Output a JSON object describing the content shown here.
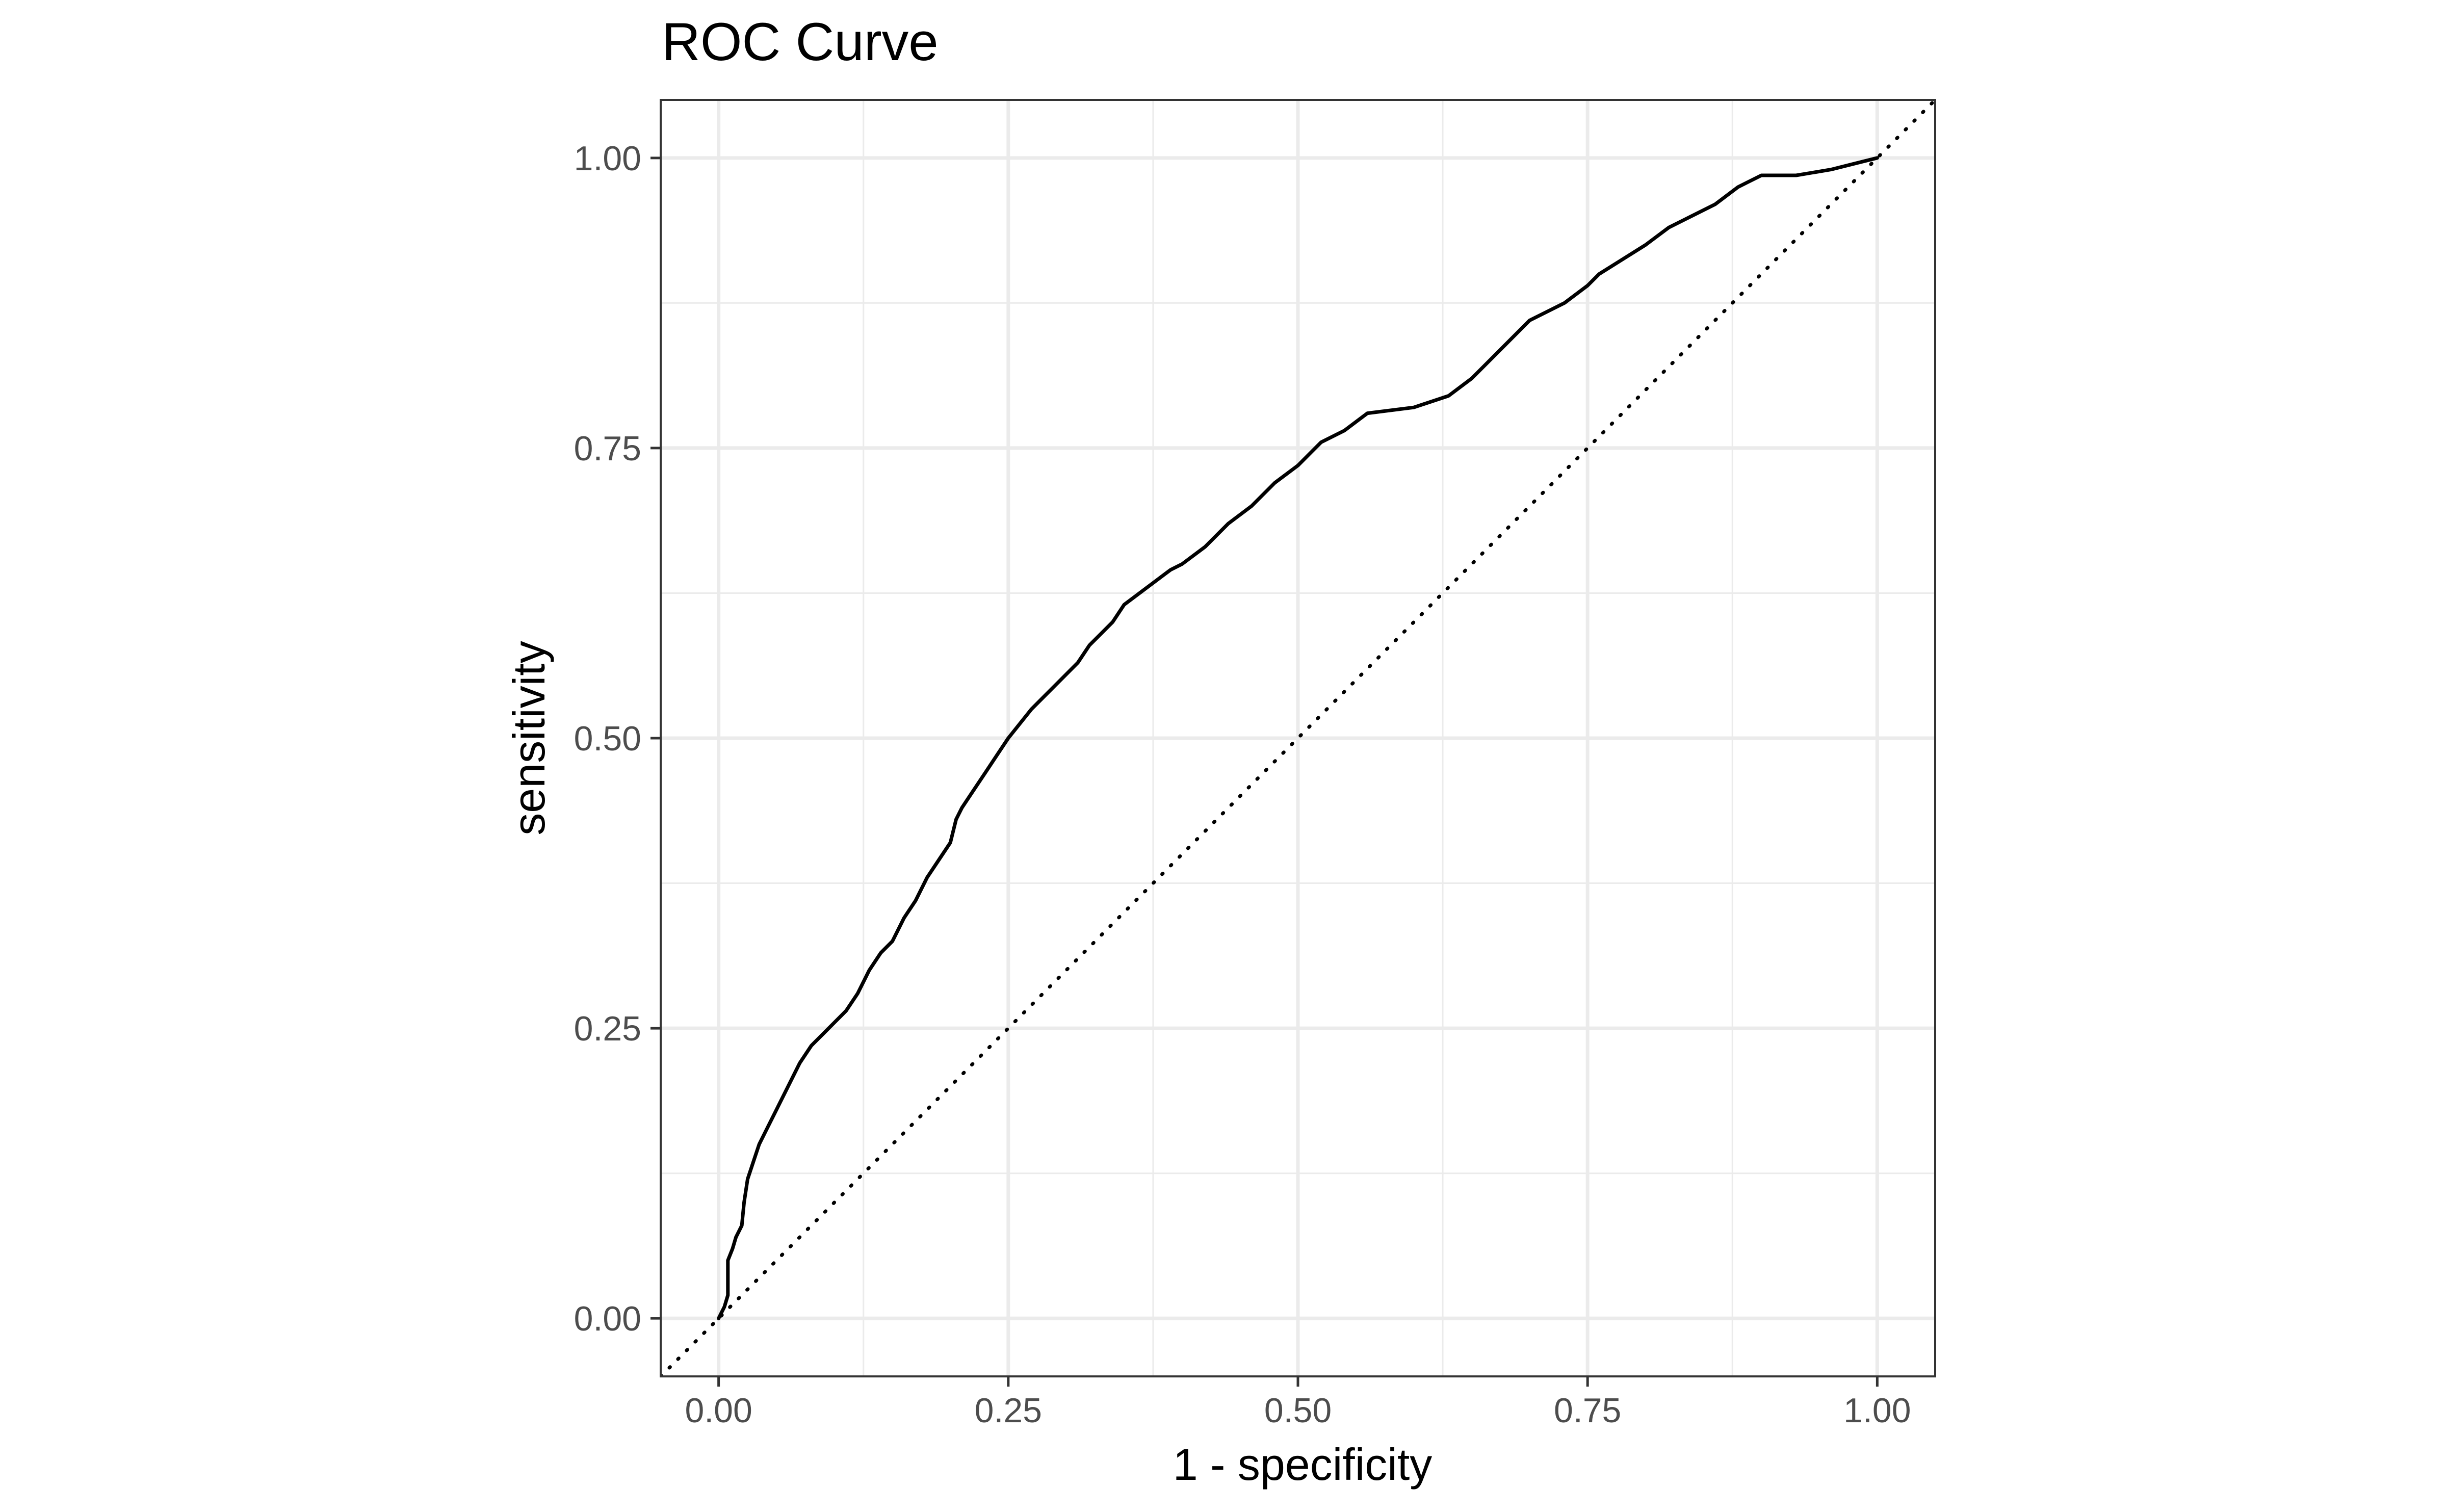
{
  "chart_data": {
    "type": "line",
    "title": "ROC Curve",
    "xlabel": "1 - specificity",
    "ylabel": "sensitivity",
    "xlim": [
      -0.05,
      1.05
    ],
    "ylim": [
      -0.05,
      1.05
    ],
    "x_ticks": [
      0.0,
      0.25,
      0.5,
      0.75,
      1.0
    ],
    "x_tick_labels": [
      "0.00",
      "0.25",
      "0.50",
      "0.75",
      "1.00"
    ],
    "y_ticks": [
      0.0,
      0.25,
      0.5,
      0.75,
      1.0
    ],
    "y_tick_labels": [
      "0.00",
      "0.25",
      "0.50",
      "0.75",
      "1.00"
    ],
    "grid": true,
    "legend": "none",
    "colors": {
      "curve": "#000000",
      "reference": "#000000",
      "grid": "#ebebeb",
      "panel_border": "#333333"
    },
    "series": [
      {
        "style": "solid",
        "x": [
          0.0,
          0.005,
          0.008,
          0.008,
          0.012,
          0.015,
          0.02,
          0.022,
          0.025,
          0.03,
          0.035,
          0.04,
          0.045,
          0.05,
          0.06,
          0.07,
          0.08,
          0.09,
          0.1,
          0.11,
          0.12,
          0.13,
          0.14,
          0.15,
          0.16,
          0.17,
          0.18,
          0.19,
          0.2,
          0.205,
          0.21,
          0.22,
          0.23,
          0.24,
          0.25,
          0.27,
          0.29,
          0.31,
          0.32,
          0.34,
          0.35,
          0.37,
          0.39,
          0.4,
          0.42,
          0.44,
          0.46,
          0.48,
          0.5,
          0.52,
          0.54,
          0.56,
          0.6,
          0.63,
          0.65,
          0.68,
          0.7,
          0.73,
          0.75,
          0.76,
          0.8,
          0.82,
          0.84,
          0.86,
          0.88,
          0.9,
          0.93,
          0.96,
          0.98,
          1.0
        ],
        "y": [
          0.0,
          0.01,
          0.02,
          0.05,
          0.06,
          0.07,
          0.08,
          0.1,
          0.12,
          0.135,
          0.15,
          0.16,
          0.17,
          0.18,
          0.2,
          0.22,
          0.235,
          0.245,
          0.255,
          0.265,
          0.28,
          0.3,
          0.315,
          0.325,
          0.345,
          0.36,
          0.38,
          0.395,
          0.41,
          0.43,
          0.44,
          0.455,
          0.47,
          0.485,
          0.5,
          0.525,
          0.545,
          0.565,
          0.58,
          0.6,
          0.615,
          0.63,
          0.645,
          0.65,
          0.665,
          0.685,
          0.7,
          0.72,
          0.735,
          0.755,
          0.765,
          0.78,
          0.785,
          0.795,
          0.81,
          0.84,
          0.86,
          0.875,
          0.89,
          0.9,
          0.925,
          0.94,
          0.95,
          0.96,
          0.975,
          0.985,
          0.985,
          0.99,
          0.995,
          1.0
        ]
      },
      {
        "style": "dotted",
        "x": [
          -0.05,
          1.05
        ],
        "y": [
          -0.05,
          1.05
        ]
      }
    ]
  }
}
